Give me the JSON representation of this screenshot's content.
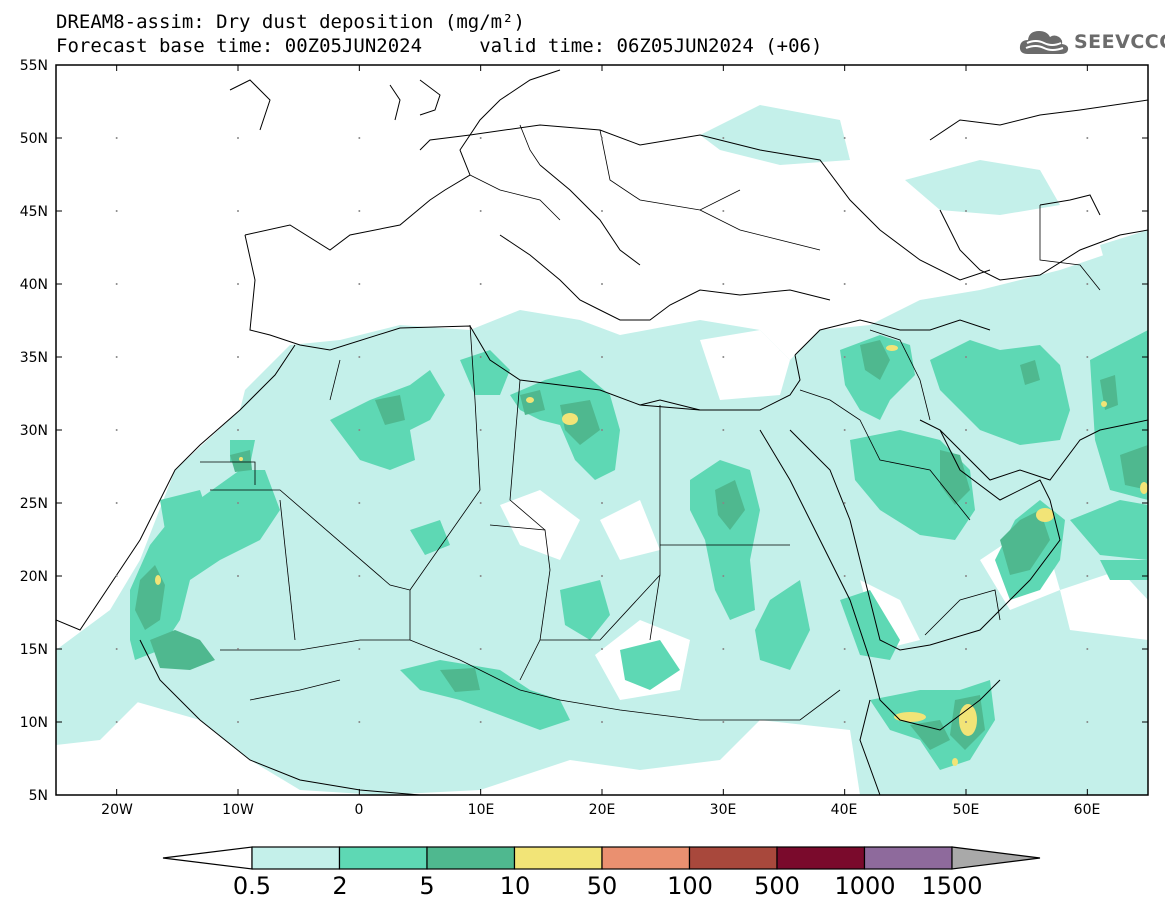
{
  "header": {
    "title_line1": "DREAM8-assim: Dry dust deposition (mg/m²)",
    "title_line2": "Forecast base time: 00Z05JUN2024     valid time: 06Z05JUN2024 (+06)",
    "logo_text": "SEEVCCC",
    "logo_icon": "cloud-icon"
  },
  "map": {
    "lat_labels": [
      "55N",
      "50N",
      "45N",
      "40N",
      "35N",
      "30N",
      "25N",
      "20N",
      "15N",
      "10N",
      "5N"
    ],
    "lon_labels": [
      "20W",
      "10W",
      "0",
      "10E",
      "20E",
      "30E",
      "40E",
      "50E",
      "60E"
    ],
    "extent": {
      "lon_min": -25,
      "lon_max": 65,
      "lat_min": 5,
      "lat_max": 55
    }
  },
  "legend": {
    "labels": [
      "0.5",
      "2",
      "5",
      "10",
      "50",
      "100",
      "500",
      "1000",
      "1500"
    ],
    "colors": [
      "#c4f0ea",
      "#5ed8b4",
      "#4fb88f",
      "#f2e477",
      "#ea9070",
      "#a8483c",
      "#7a0a2c",
      "#8e6a9c"
    ],
    "arrow_left_color": "#ffffff",
    "arrow_right_color": "#a9a9a9"
  }
}
